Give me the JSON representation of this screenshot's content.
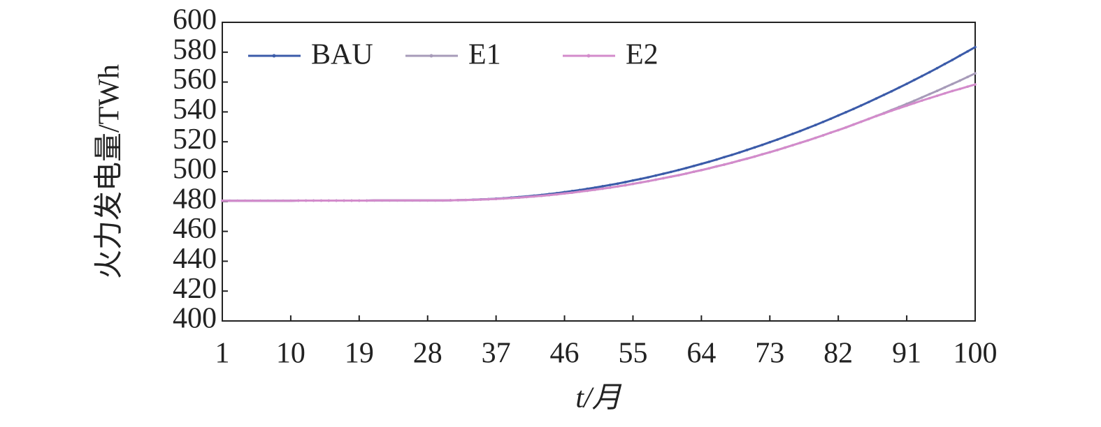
{
  "chart_data": {
    "type": "line",
    "ylabel": "火力发电量/TWh",
    "xlabel": "t/月",
    "x": [
      1,
      2,
      3,
      4,
      5,
      6,
      7,
      8,
      9,
      10,
      11,
      12,
      13,
      14,
      15,
      16,
      17,
      18,
      19,
      20,
      21,
      22,
      23,
      24,
      25,
      26,
      27,
      28,
      29,
      30,
      31,
      32,
      33,
      34,
      35,
      36,
      37,
      38,
      39,
      40,
      41,
      42,
      43,
      44,
      45,
      46,
      47,
      48,
      49,
      50,
      51,
      52,
      53,
      54,
      55,
      56,
      57,
      58,
      59,
      60,
      61,
      62,
      63,
      64,
      65,
      66,
      67,
      68,
      69,
      70,
      71,
      72,
      73,
      74,
      75,
      76,
      77,
      78,
      79,
      80,
      81,
      82,
      83,
      84,
      85,
      86,
      87,
      88,
      89,
      90,
      91,
      92,
      93,
      94,
      95,
      96,
      97,
      98,
      99,
      100
    ],
    "xlim": [
      1,
      100
    ],
    "xticks": [
      1,
      10,
      19,
      28,
      37,
      46,
      55,
      64,
      73,
      82,
      91,
      100
    ],
    "ylim": [
      400,
      600
    ],
    "yticks": [
      400,
      420,
      440,
      460,
      480,
      500,
      520,
      540,
      560,
      580,
      600
    ],
    "legend": "upper-left",
    "series": [
      {
        "name": "BAU",
        "color": "#3b5ba9",
        "values": [
          480.5,
          480.5,
          480.5,
          480.5,
          480.5,
          480.5,
          480.5,
          480.5,
          480.5,
          480.5,
          480.6,
          480.6,
          480.6,
          480.6,
          480.6,
          480.6,
          480.6,
          480.6,
          480.6,
          480.6,
          480.7,
          480.7,
          480.7,
          480.7,
          480.7,
          480.7,
          480.7,
          480.7,
          480.7,
          480.7,
          480.8,
          480.9,
          481.0,
          481.2,
          481.4,
          481.6,
          481.9,
          482.2,
          482.6,
          483.0,
          483.4,
          483.9,
          484.4,
          485.0,
          485.6,
          486.3,
          487.0,
          487.7,
          488.5,
          489.3,
          490.2,
          491.1,
          492.0,
          493.0,
          494.1,
          495.1,
          496.2,
          497.4,
          498.6,
          499.8,
          501.1,
          502.4,
          503.8,
          505.2,
          506.6,
          508.1,
          509.7,
          511.2,
          512.8,
          514.5,
          516.2,
          517.9,
          519.7,
          521.5,
          523.4,
          525.3,
          527.2,
          529.2,
          531.2,
          533.3,
          535.4,
          537.6,
          539.8,
          542.0,
          544.3,
          546.6,
          549.0,
          551.4,
          553.8,
          556.3,
          558.8,
          561.4,
          564.0,
          566.6,
          569.3,
          572.1,
          574.8,
          577.7,
          580.5,
          583.4
        ]
      },
      {
        "name": "E1",
        "color": "#a79bb9",
        "values": [
          480.5,
          480.5,
          480.5,
          480.5,
          480.5,
          480.5,
          480.5,
          480.5,
          480.5,
          480.5,
          480.6,
          480.6,
          480.6,
          480.6,
          480.6,
          480.6,
          480.6,
          480.6,
          480.6,
          480.6,
          480.7,
          480.7,
          480.7,
          480.7,
          480.7,
          480.7,
          480.7,
          480.7,
          480.7,
          480.7,
          480.8,
          480.9,
          481.0,
          481.1,
          481.3,
          481.5,
          481.7,
          482.0,
          482.3,
          482.6,
          483.0,
          483.4,
          483.8,
          484.3,
          484.8,
          485.4,
          485.9,
          486.6,
          487.2,
          487.9,
          488.6,
          489.3,
          490.1,
          490.9,
          491.8,
          492.7,
          493.6,
          494.6,
          495.6,
          496.6,
          497.6,
          498.7,
          499.9,
          501.0,
          502.2,
          503.5,
          504.7,
          506.0,
          507.4,
          508.7,
          510.1,
          511.6,
          513.0,
          514.5,
          516.1,
          517.7,
          519.3,
          520.9,
          522.6,
          524.3,
          526.1,
          527.8,
          529.6,
          531.5,
          533.4,
          535.3,
          537.3,
          539.2,
          541.3,
          543.3,
          545.4,
          547.5,
          549.7,
          551.9,
          554.1,
          556.4,
          558.7,
          561.0,
          563.4,
          565.8
        ]
      },
      {
        "name": "E2",
        "color": "#d38bcb",
        "values": [
          480.5,
          480.5,
          480.5,
          480.5,
          480.5,
          480.5,
          480.5,
          480.5,
          480.5,
          480.5,
          480.6,
          480.6,
          480.6,
          480.6,
          480.6,
          480.6,
          480.6,
          480.6,
          480.6,
          480.6,
          480.7,
          480.7,
          480.7,
          480.7,
          480.7,
          480.7,
          480.7,
          480.7,
          480.7,
          480.7,
          480.8,
          480.9,
          481.0,
          481.1,
          481.3,
          481.5,
          481.7,
          482.0,
          482.3,
          482.6,
          483.0,
          483.4,
          483.8,
          484.3,
          484.8,
          485.4,
          485.9,
          486.6,
          487.2,
          487.9,
          488.6,
          489.3,
          490.1,
          490.9,
          491.8,
          492.7,
          493.6,
          494.6,
          495.6,
          496.6,
          497.6,
          498.7,
          499.9,
          501.0,
          502.2,
          503.5,
          504.7,
          506.0,
          507.4,
          508.7,
          510.1,
          511.6,
          513.0,
          514.5,
          516.1,
          517.7,
          519.3,
          520.9,
          522.6,
          524.3,
          526.1,
          527.8,
          529.6,
          531.5,
          533.4,
          535.3,
          537.2,
          538.9,
          540.8,
          542.5,
          544.2,
          545.9,
          547.6,
          549.2,
          550.8,
          552.4,
          554.0,
          555.4,
          556.9,
          558.4
        ]
      }
    ]
  }
}
